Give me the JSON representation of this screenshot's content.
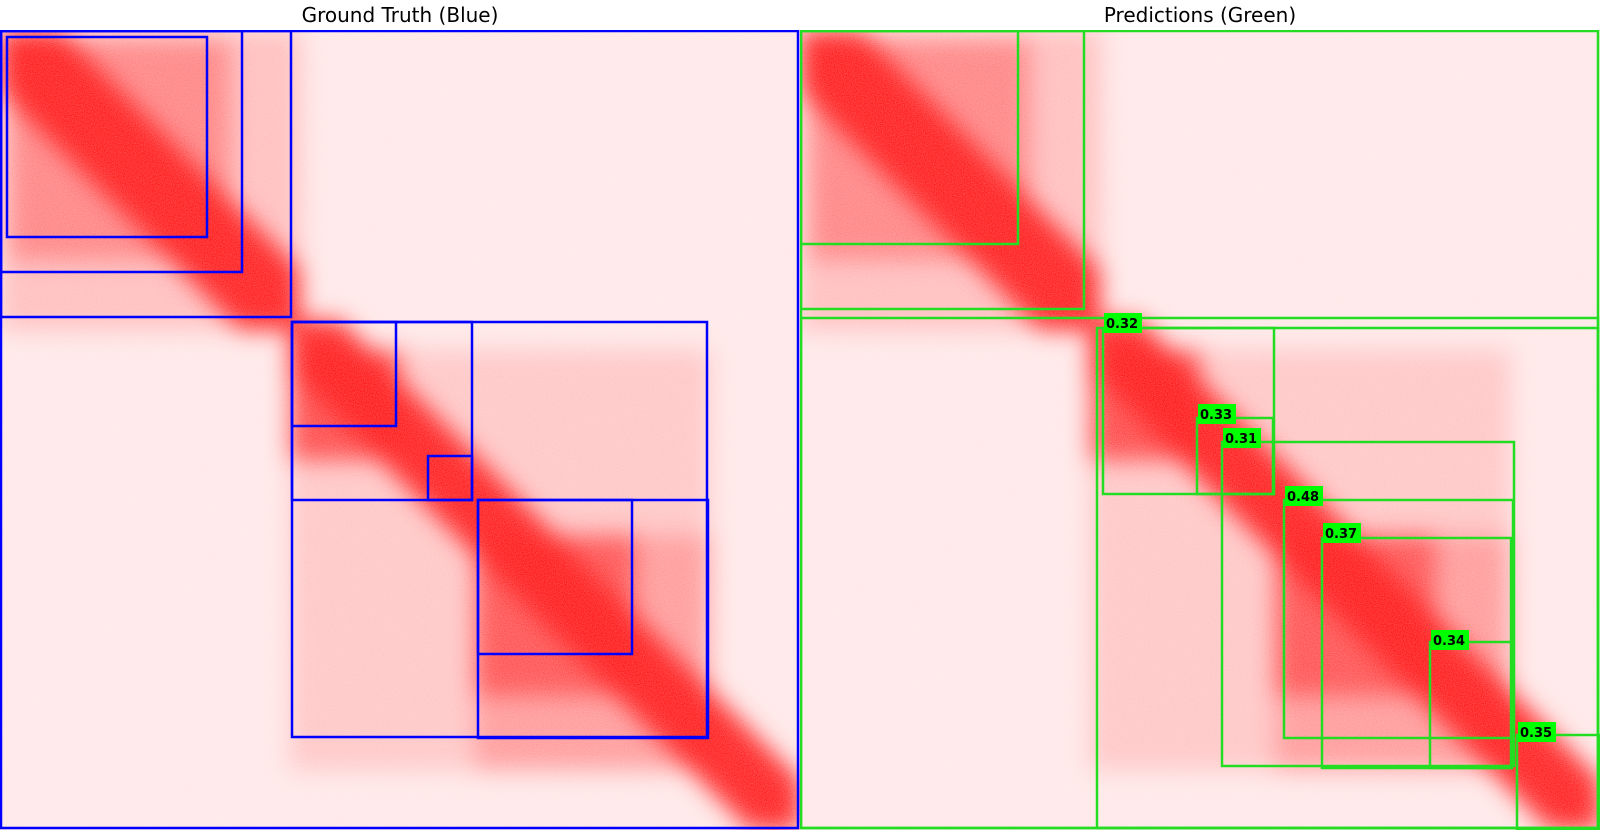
{
  "titles": {
    "left": "Ground Truth (Blue)",
    "right": "Predictions (Green)"
  },
  "colors": {
    "ground_truth_box": "#0000ff",
    "prediction_box": "#22dd22",
    "label_bg": "#00ff00",
    "heat": "#ff0000",
    "background": "#ffe8e8"
  },
  "scores": [
    "0.32",
    "0.33",
    "0.31",
    "0.48",
    "0.37",
    "0.34",
    "0.35"
  ]
}
